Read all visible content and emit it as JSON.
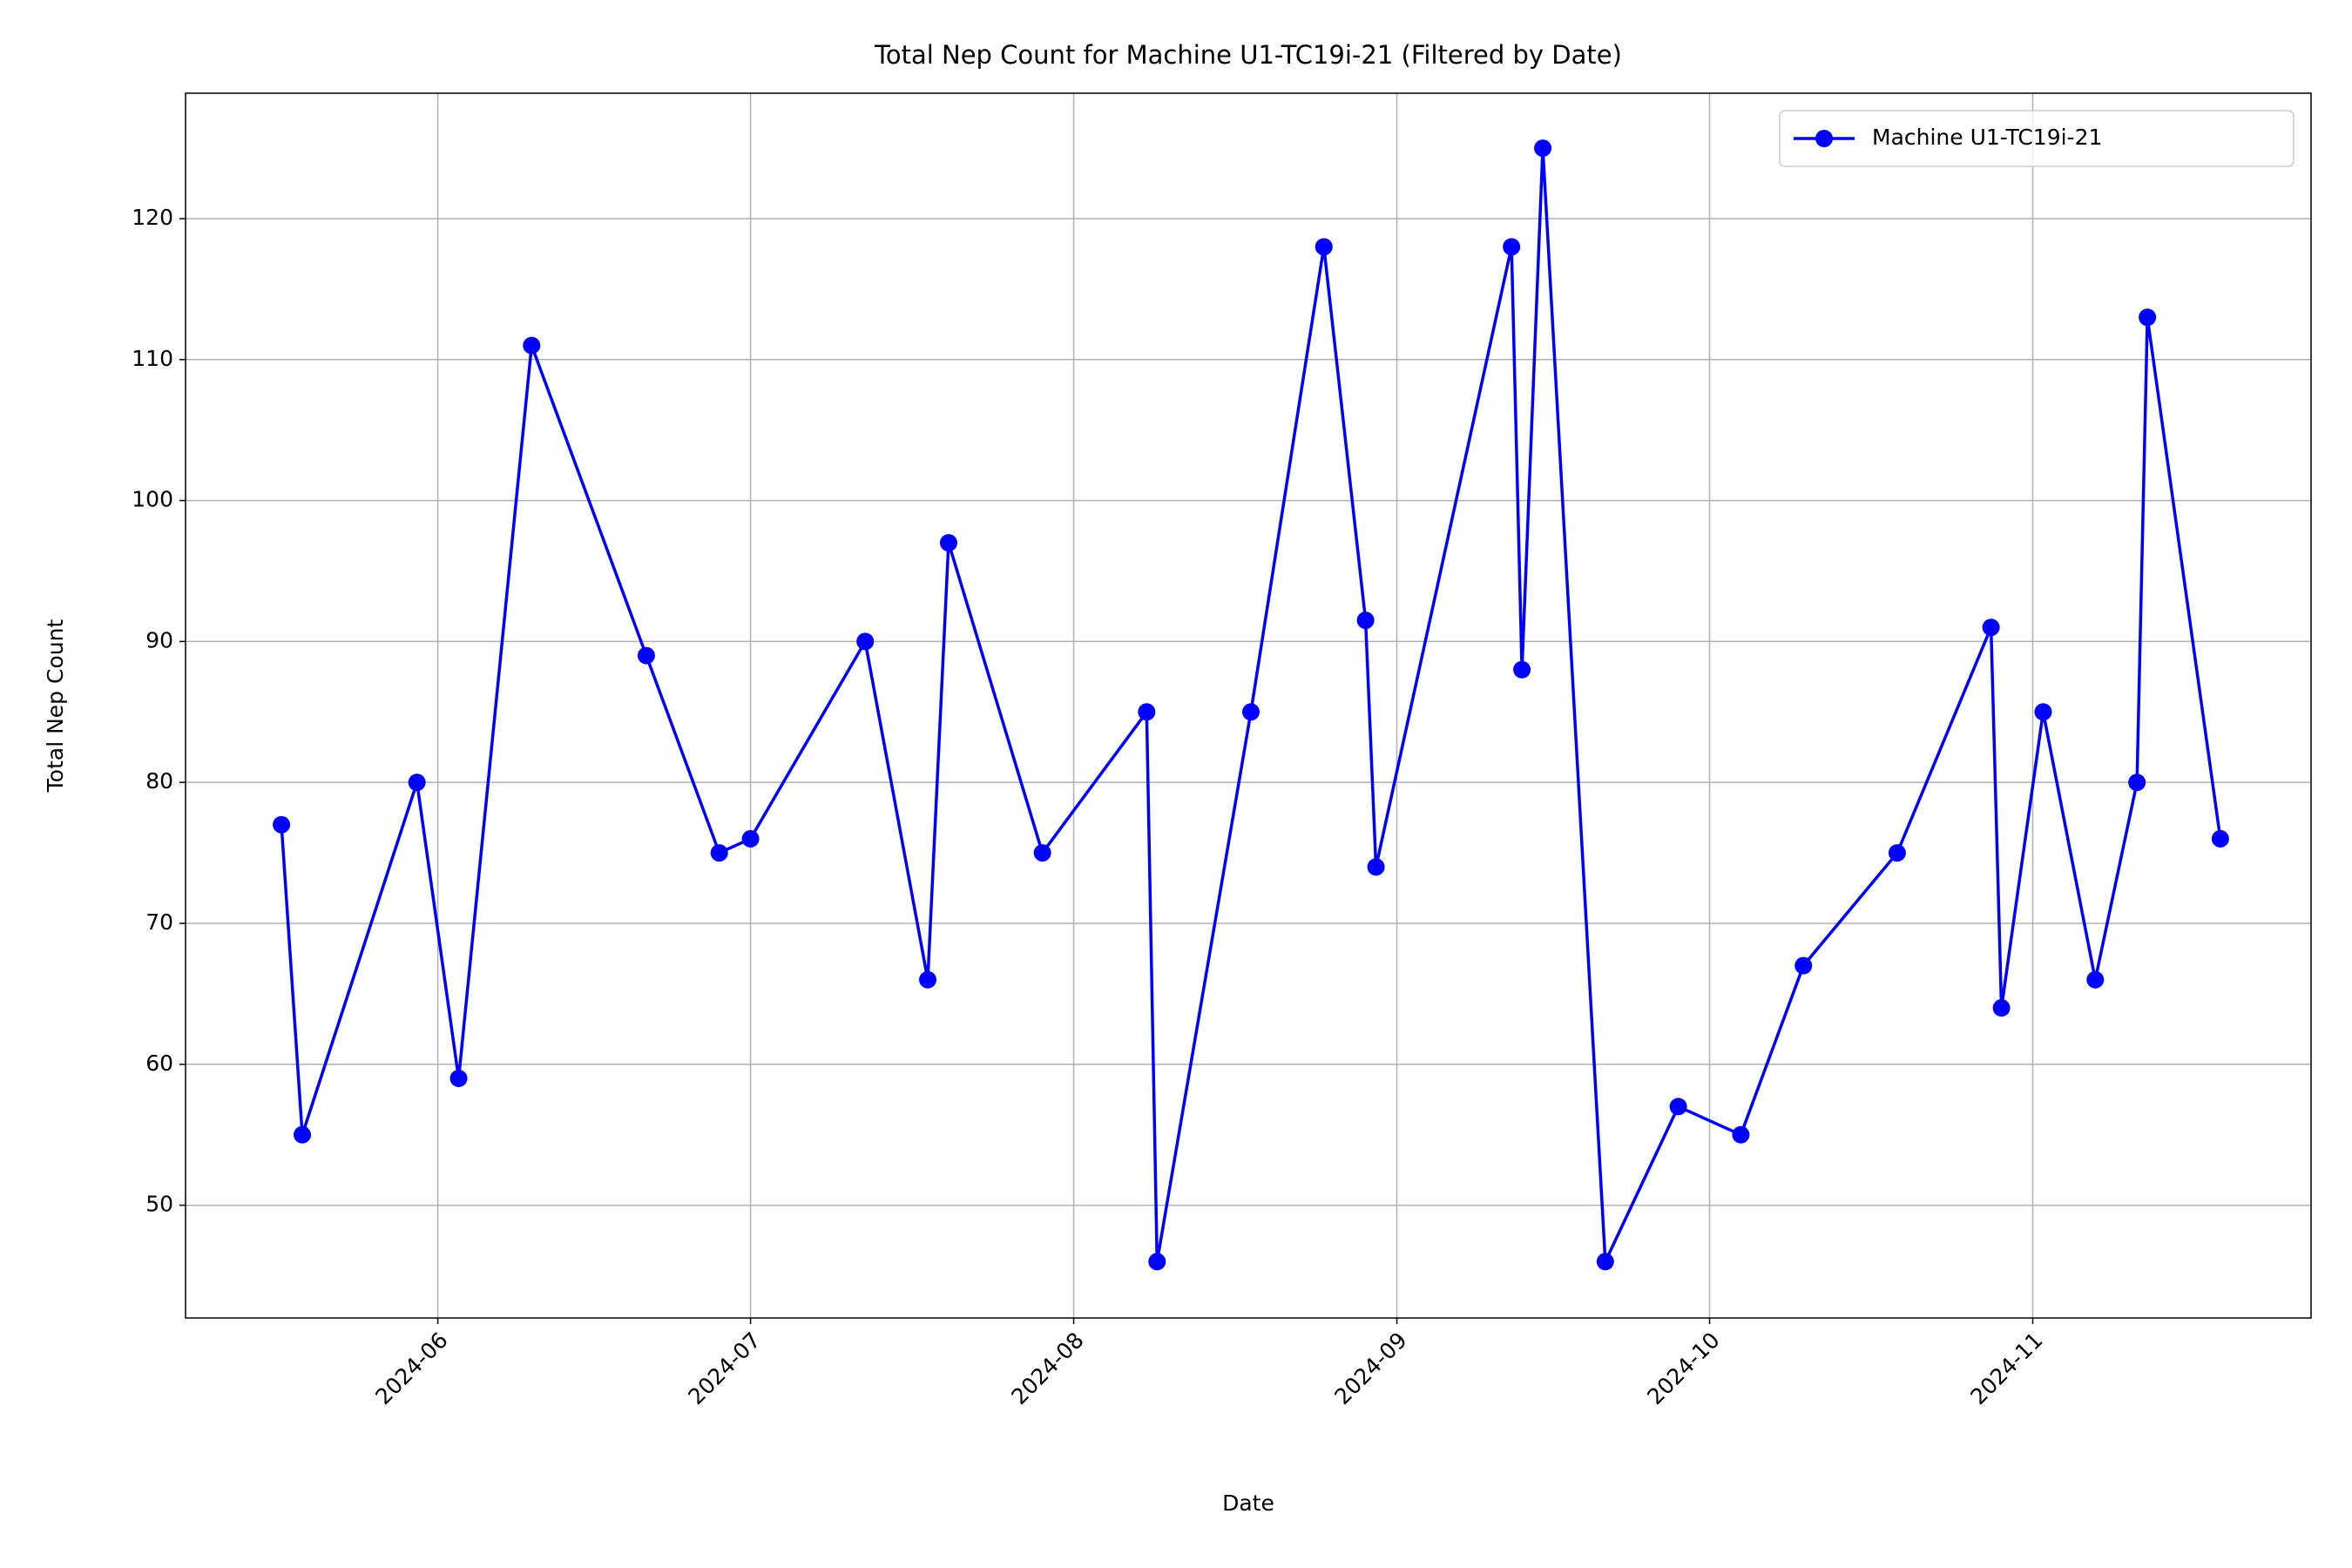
{
  "chart_data": {
    "type": "line",
    "title": "Total Nep Count for Machine U1-TC19i-21 (Filtered by Date)",
    "xlabel": "Date",
    "ylabel": "Total Nep Count",
    "x": [
      138,
      140,
      151,
      155,
      162,
      173,
      180,
      183,
      194,
      200,
      202,
      211,
      221,
      222,
      231,
      238,
      242,
      243,
      256,
      257,
      259,
      265,
      272,
      278,
      284,
      293,
      302,
      303,
      307,
      312,
      316,
      317,
      324
    ],
    "series": [
      {
        "name": "Machine U1-TC19i-21",
        "color": "#0000ff",
        "values": [
          77,
          55,
          80,
          59,
          111,
          89,
          75,
          76,
          90,
          66,
          97,
          75,
          85,
          46,
          85,
          118,
          91.5,
          74,
          118,
          88,
          125,
          46,
          57,
          55,
          67,
          75,
          91,
          64,
          85,
          66,
          80,
          113,
          76
        ]
      }
    ],
    "xlim": [
      128.8,
      332.7
    ],
    "xticks": [
      {
        "value": 153,
        "label": "2024-06"
      },
      {
        "value": 183,
        "label": "2024-07"
      },
      {
        "value": 214,
        "label": "2024-08"
      },
      {
        "value": 245,
        "label": "2024-09"
      },
      {
        "value": 275,
        "label": "2024-10"
      },
      {
        "value": 306,
        "label": "2024-11"
      }
    ],
    "ylim": [
      42,
      128.9
    ],
    "yticks": [
      50,
      60,
      70,
      80,
      90,
      100,
      110,
      120
    ],
    "grid": true,
    "legend": "upper right"
  }
}
